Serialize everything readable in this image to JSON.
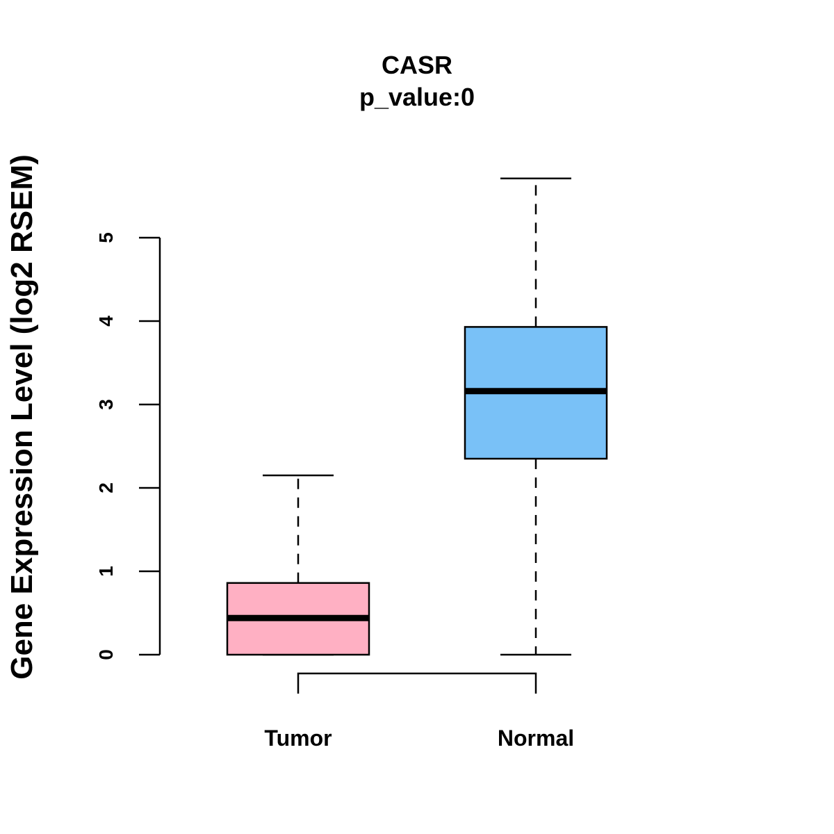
{
  "chart_data": {
    "type": "boxplot",
    "title": "CASR",
    "subtitle": "p_value:0",
    "xlabel": "",
    "ylabel": "Gene Expression Level (log2 RSEM)",
    "ylim": [
      0,
      5
    ],
    "yticks": [
      0,
      1,
      2,
      3,
      4,
      5
    ],
    "grid": false,
    "groups": [
      {
        "name": "Tumor",
        "color": "#FFB0C3",
        "whisker_low": 0,
        "q1": 0,
        "median": 0.44,
        "q3": 0.86,
        "whisker_high": 2.15
      },
      {
        "name": "Normal",
        "color": "#79C1F7",
        "whisker_low": 0,
        "q1": 2.35,
        "median": 3.16,
        "q3": 3.93,
        "whisker_high": 5.71
      }
    ],
    "comparison_bracket": [
      "Tumor",
      "Normal"
    ]
  }
}
